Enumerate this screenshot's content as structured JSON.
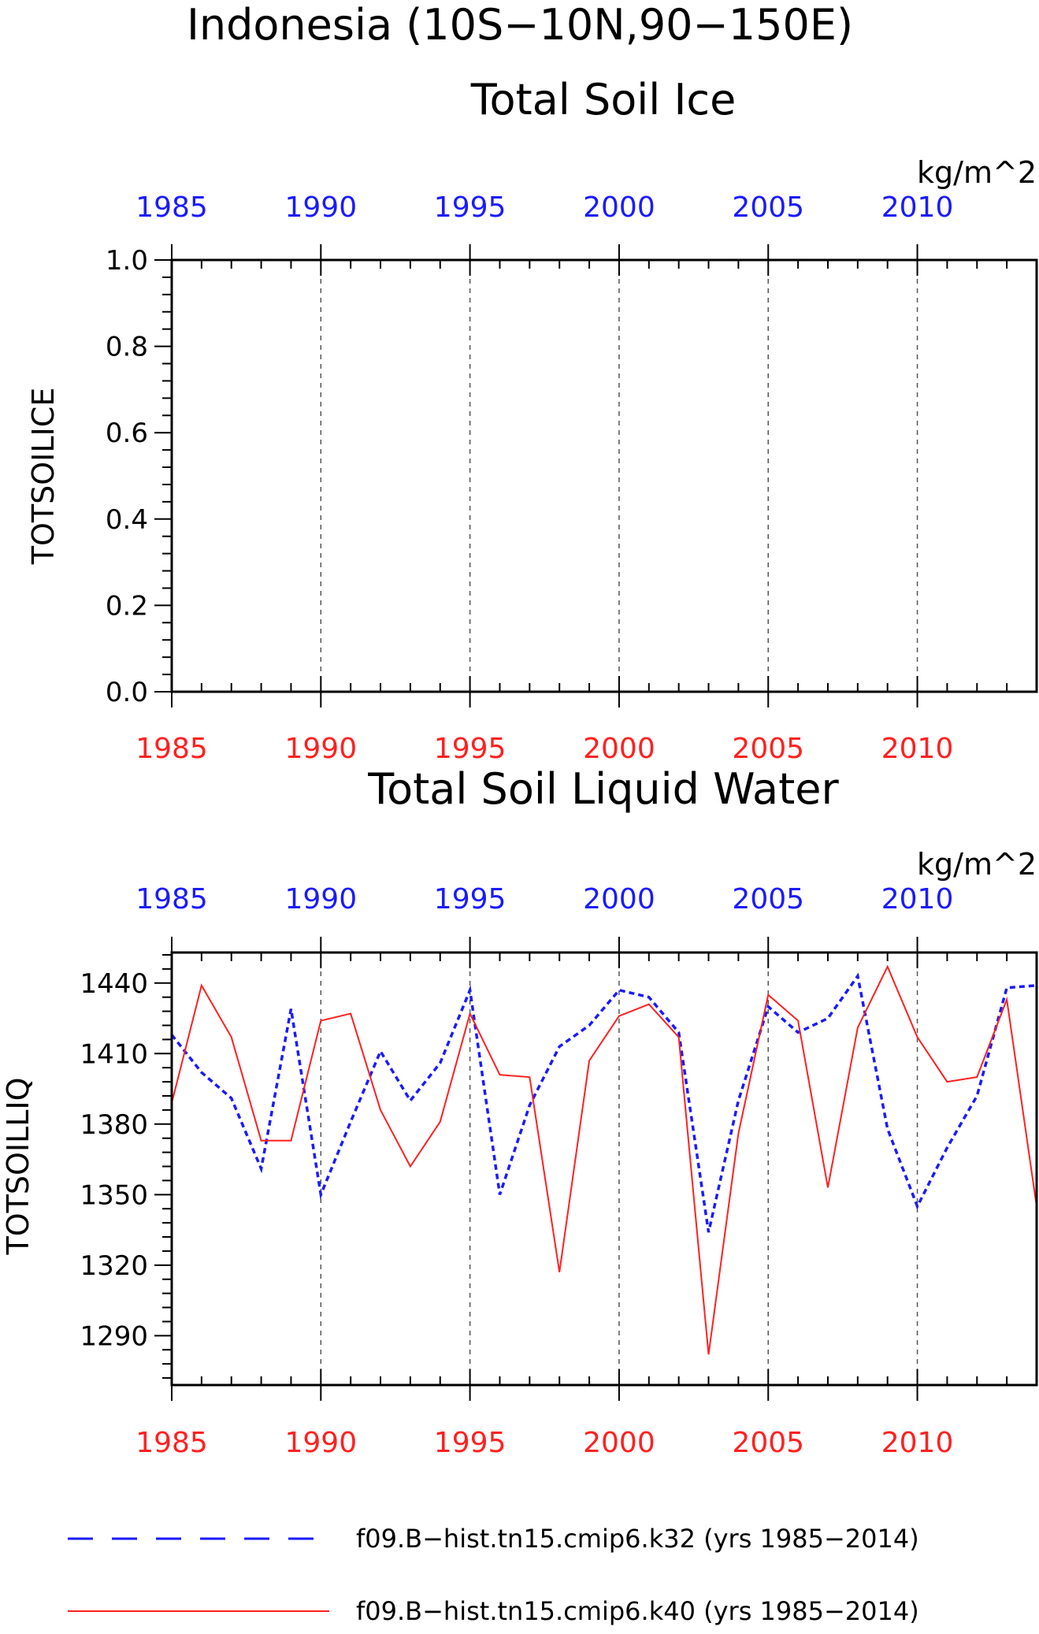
{
  "header": {
    "title": "Indonesia (10S−10N,90−150E)"
  },
  "chart_data": [
    {
      "type": "line",
      "title": "Total Soil Ice",
      "ylabel": "TOTSOILICE",
      "units": "kg/m^2",
      "xlim": [
        1985,
        2014
      ],
      "ylim": [
        0.0,
        1.0
      ],
      "yticks": [
        0.0,
        0.2,
        0.4,
        0.6,
        0.8,
        1.0
      ],
      "yticklabels": [
        "0.0",
        "0.2",
        "0.4",
        "0.6",
        "0.8",
        "1.0"
      ],
      "xticks": [
        1985,
        1990,
        1995,
        2000,
        2005,
        2010
      ],
      "xticklabels": [
        "1985",
        "1990",
        "1995",
        "2000",
        "2005",
        "2010"
      ],
      "grid_x": [
        1990,
        1995,
        2000,
        2005,
        2010
      ],
      "series": []
    },
    {
      "type": "line",
      "title": "Total Soil Liquid Water",
      "ylabel": "TOTSOILLIQ",
      "units": "kg/m^2",
      "xlim": [
        1985,
        2014
      ],
      "ylim": [
        1269,
        1453
      ],
      "yticks": [
        1290,
        1320,
        1350,
        1380,
        1410,
        1440
      ],
      "yticklabels": [
        "1290",
        "1320",
        "1350",
        "1380",
        "1410",
        "1440"
      ],
      "xticks": [
        1985,
        1990,
        1995,
        2000,
        2005,
        2010
      ],
      "xticklabels": [
        "1985",
        "1990",
        "1995",
        "2000",
        "2005",
        "2010"
      ],
      "grid_x": [
        1990,
        1995,
        2000,
        2005,
        2010
      ],
      "x": [
        1985,
        1986,
        1987,
        1988,
        1989,
        1990,
        1991,
        1992,
        1993,
        1994,
        1995,
        1996,
        1997,
        1998,
        1999,
        2000,
        2001,
        2002,
        2003,
        2004,
        2005,
        2006,
        2007,
        2008,
        2009,
        2010,
        2011,
        2012,
        2013,
        2014
      ],
      "series": [
        {
          "name": "f09.B−hist.tn15.cmip6.k32 (yrs 1985−2014)",
          "color": "#1a1aff",
          "dash": "dashed",
          "values": [
            1418,
            1402,
            1391,
            1361,
            1429,
            1350,
            1381,
            1411,
            1390,
            1406,
            1437,
            1350,
            1388,
            1413,
            1422,
            1437,
            1434,
            1419,
            1334,
            1390,
            1430,
            1419,
            1425,
            1443,
            1378,
            1345,
            1370,
            1392,
            1438,
            1439
          ]
        },
        {
          "name": "f09.B−hist.tn15.cmip6.k40 (yrs 1985−2014)",
          "color": "#ff2020",
          "dash": "solid",
          "values": [
            1389,
            1439,
            1417,
            1373,
            1373,
            1424,
            1427,
            1386,
            1362,
            1381,
            1427,
            1401,
            1400,
            1317,
            1407,
            1426,
            1431,
            1417,
            1282,
            1376,
            1435,
            1424,
            1353,
            1421,
            1447,
            1417,
            1398,
            1400,
            1433,
            1345
          ]
        }
      ]
    }
  ],
  "legend": {
    "items": [
      {
        "label": "f09.B−hist.tn15.cmip6.k32 (yrs 1985−2014)",
        "color": "#1a1aff",
        "style": "dashed"
      },
      {
        "label": "f09.B−hist.tn15.cmip6.k40 (yrs 1985−2014)",
        "color": "#ff2020",
        "style": "solid"
      }
    ]
  }
}
